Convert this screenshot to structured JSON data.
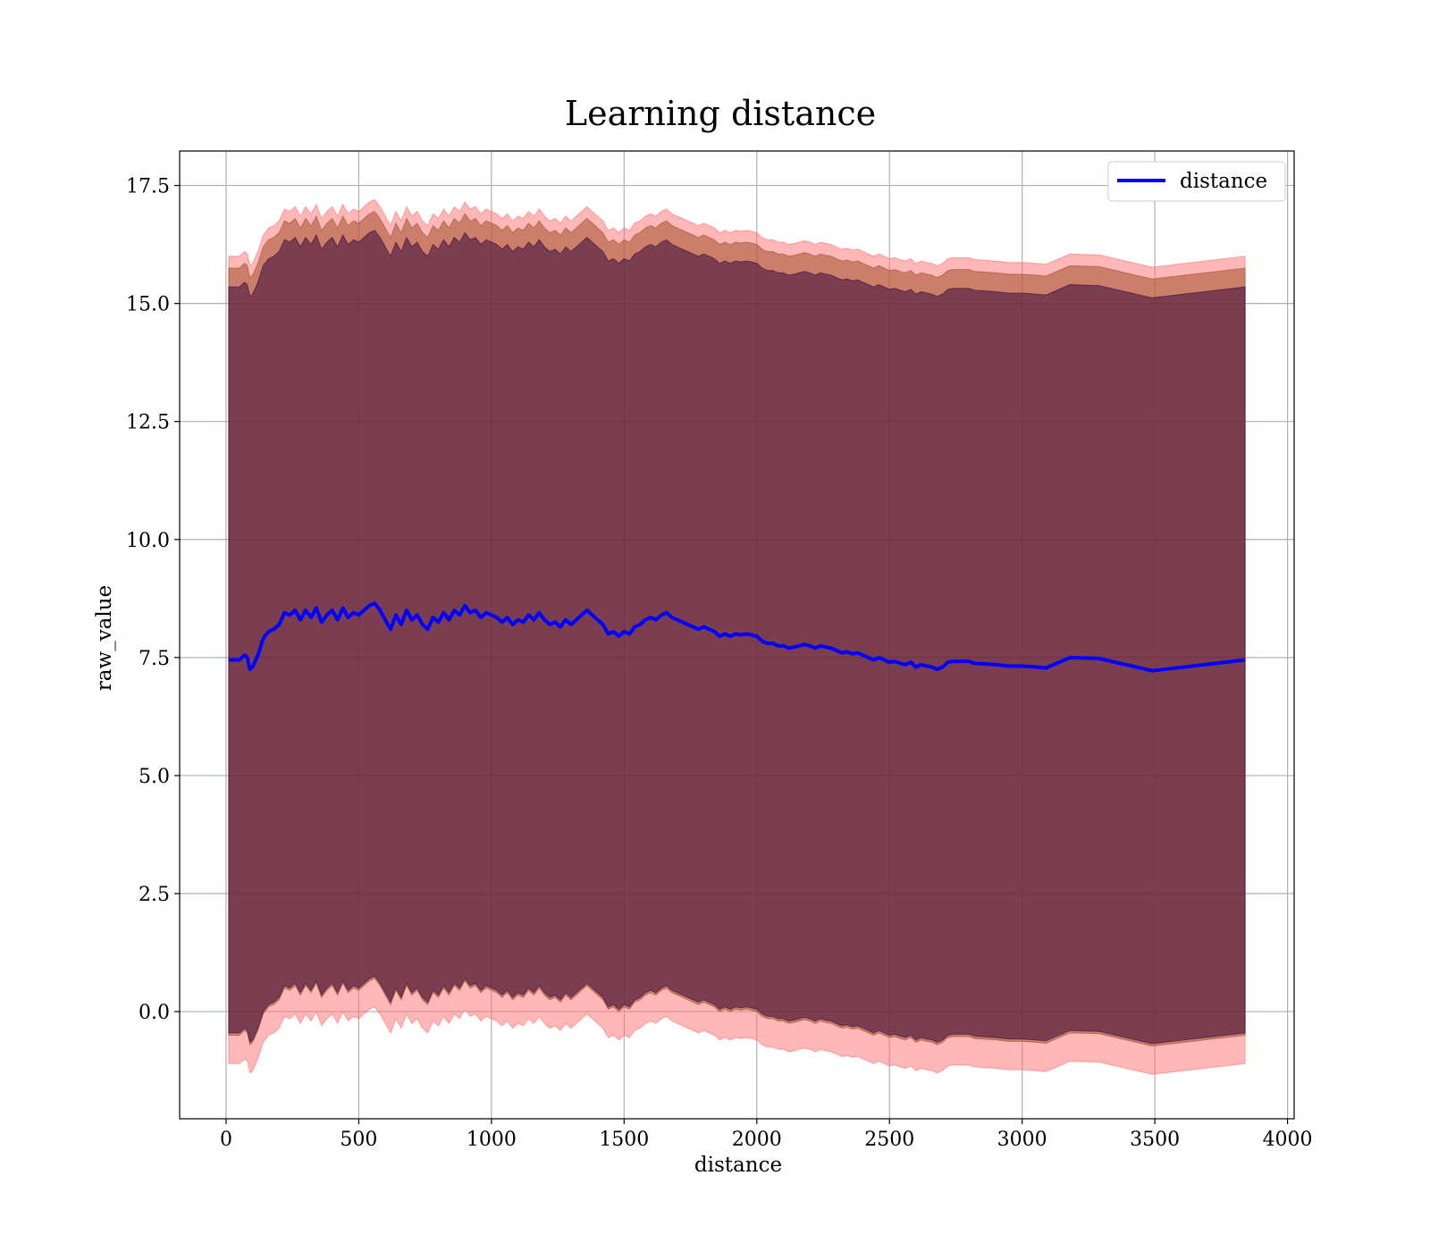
{
  "chart_data": {
    "type": "line",
    "title": "Learning distance",
    "xlabel": "distance",
    "ylabel": "raw_value",
    "xlim": [
      -175,
      4025
    ],
    "ylim": [
      -2.27,
      18.23
    ],
    "xticks": [
      0,
      500,
      1000,
      1500,
      2000,
      2500,
      3000,
      3500,
      4000
    ],
    "xtick_labels": [
      "0",
      "500",
      "1000",
      "1500",
      "2000",
      "2500",
      "3000",
      "3500",
      "4000"
    ],
    "yticks": [
      0.0,
      2.5,
      5.0,
      7.5,
      10.0,
      12.5,
      15.0,
      17.5
    ],
    "ytick_labels": [
      "0.0",
      "2.5",
      "5.0",
      "7.5",
      "10.0",
      "12.5",
      "15.0",
      "17.5"
    ],
    "grid": true,
    "legend_position": "top-right",
    "colors": {
      "line": "#0000ff",
      "band_outer": "#ff6f6f",
      "band_middle": "#a0522d",
      "band_inner": "#3b0a3a",
      "axes_frame": "#000000",
      "grid": "#b0b0b0"
    },
    "series": [
      {
        "name": "distance",
        "x": [
          10,
          50,
          70,
          80,
          90,
          100,
          120,
          140,
          160,
          180,
          200,
          220,
          240,
          260,
          280,
          300,
          320,
          340,
          360,
          380,
          400,
          420,
          440,
          460,
          480,
          500,
          520,
          540,
          560,
          580,
          600,
          620,
          640,
          660,
          680,
          700,
          720,
          740,
          760,
          780,
          800,
          820,
          840,
          860,
          880,
          900,
          920,
          940,
          960,
          980,
          1000,
          1020,
          1040,
          1060,
          1080,
          1100,
          1120,
          1140,
          1160,
          1180,
          1200,
          1220,
          1240,
          1260,
          1280,
          1300,
          1320,
          1340,
          1360,
          1380,
          1400,
          1420,
          1440,
          1460,
          1480,
          1500,
          1520,
          1540,
          1560,
          1580,
          1600,
          1620,
          1640,
          1660,
          1680,
          1700,
          1720,
          1740,
          1760,
          1780,
          1800,
          1820,
          1840,
          1860,
          1880,
          1900,
          1920,
          1940,
          1960,
          1980,
          2000,
          2020,
          2040,
          2060,
          2080,
          2100,
          2120,
          2140,
          2160,
          2180,
          2200,
          2220,
          2240,
          2260,
          2280,
          2300,
          2320,
          2340,
          2360,
          2380,
          2400,
          2420,
          2440,
          2460,
          2480,
          2500,
          2520,
          2540,
          2560,
          2580,
          2600,
          2620,
          2640,
          2660,
          2680,
          2700,
          2720,
          2740,
          2800,
          2820,
          2900,
          2950,
          3000,
          3050,
          3090,
          3180,
          3290,
          3490,
          3840
        ],
        "values": [
          7.45,
          7.45,
          7.55,
          7.5,
          7.25,
          7.3,
          7.55,
          7.9,
          8.05,
          8.1,
          8.2,
          8.45,
          8.4,
          8.5,
          8.3,
          8.5,
          8.35,
          8.55,
          8.25,
          8.4,
          8.5,
          8.3,
          8.55,
          8.35,
          8.45,
          8.4,
          8.5,
          8.6,
          8.65,
          8.5,
          8.3,
          8.1,
          8.4,
          8.2,
          8.5,
          8.3,
          8.4,
          8.2,
          8.1,
          8.35,
          8.25,
          8.45,
          8.3,
          8.5,
          8.4,
          8.6,
          8.45,
          8.5,
          8.35,
          8.45,
          8.4,
          8.35,
          8.25,
          8.35,
          8.2,
          8.3,
          8.25,
          8.4,
          8.3,
          8.45,
          8.3,
          8.2,
          8.25,
          8.15,
          8.3,
          8.2,
          8.3,
          8.4,
          8.5,
          8.4,
          8.3,
          8.2,
          8.0,
          8.05,
          7.95,
          8.05,
          8.0,
          8.15,
          8.2,
          8.3,
          8.35,
          8.3,
          8.4,
          8.45,
          8.35,
          8.3,
          8.25,
          8.2,
          8.15,
          8.1,
          8.15,
          8.1,
          8.05,
          7.95,
          8.0,
          7.95,
          8.0,
          7.98,
          8.0,
          7.98,
          7.95,
          7.85,
          7.8,
          7.8,
          7.75,
          7.75,
          7.7,
          7.72,
          7.75,
          7.78,
          7.75,
          7.7,
          7.75,
          7.72,
          7.7,
          7.65,
          7.6,
          7.62,
          7.58,
          7.6,
          7.55,
          7.5,
          7.45,
          7.5,
          7.45,
          7.4,
          7.42,
          7.38,
          7.35,
          7.4,
          7.3,
          7.35,
          7.32,
          7.3,
          7.25,
          7.3,
          7.4,
          7.42,
          7.42,
          7.38,
          7.35,
          7.32,
          7.32,
          7.3,
          7.28,
          7.5,
          7.48,
          7.22,
          7.45
        ]
      }
    ],
    "bands": [
      {
        "label": "",
        "color": "#ff6f6f",
        "upper_offset": 8.55,
        "lower_offset": 8.55
      },
      {
        "label": "",
        "color": "#a0522d",
        "upper_offset": 8.3,
        "lower_offset": 7.95
      },
      {
        "label": "",
        "color": "#3b0a3a",
        "upper_offset": 7.9,
        "lower_offset": 7.9
      }
    ]
  }
}
